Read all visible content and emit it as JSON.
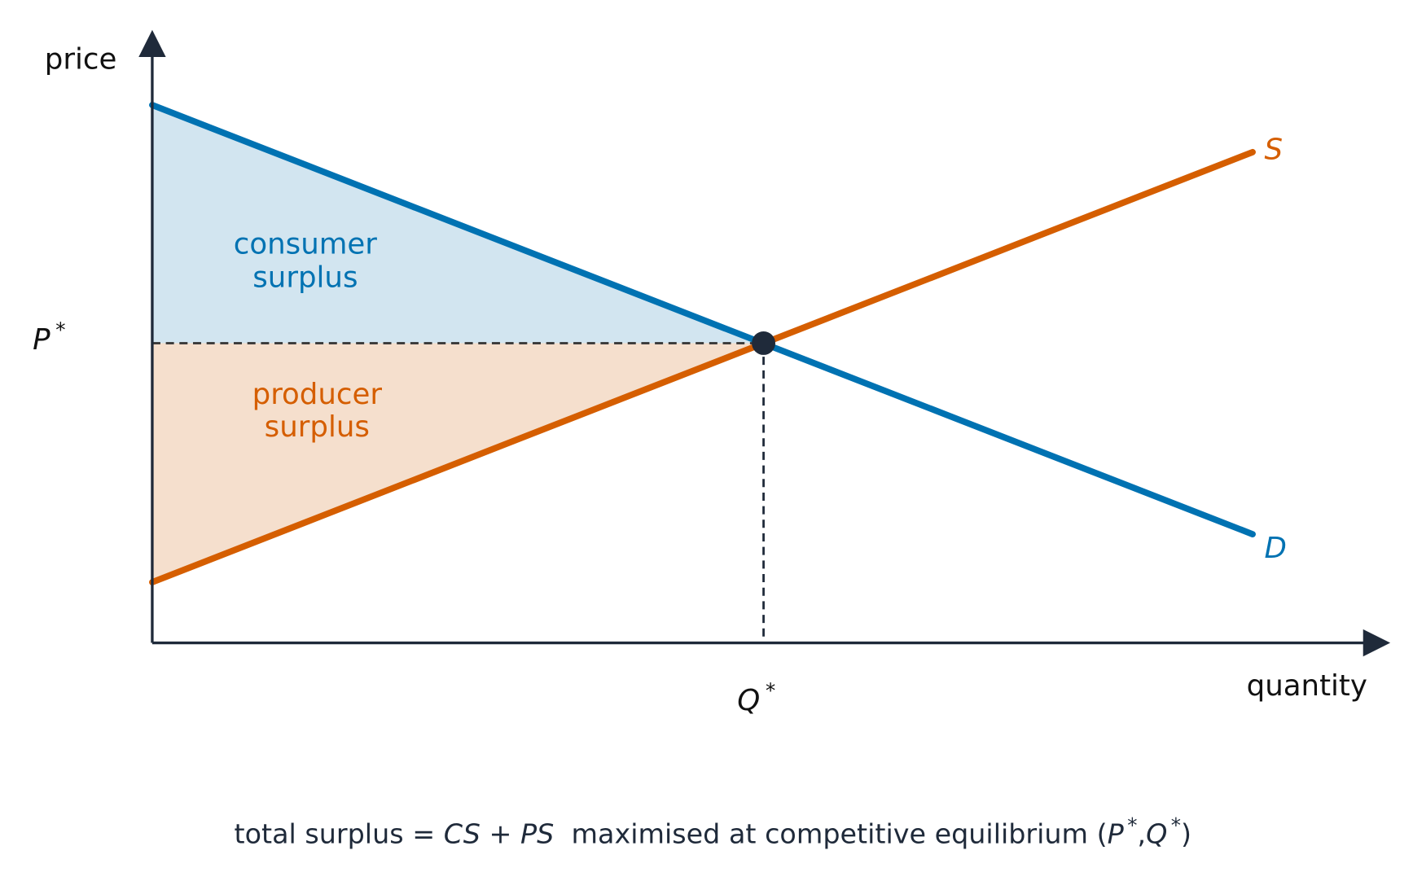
{
  "axes": {
    "y_label": "price",
    "x_label": "quantity"
  },
  "equilibrium": {
    "price": {
      "base": "P",
      "sup": "*"
    },
    "quantity": {
      "base": "Q",
      "sup": "*"
    }
  },
  "curves": {
    "supply": "S",
    "demand": "D"
  },
  "areas": {
    "consumer_surplus": [
      "consumer",
      "surplus"
    ],
    "producer_surplus": [
      "producer",
      "surplus"
    ]
  },
  "caption": [
    "total surplus ",
    "= ",
    "CS",
    " + ",
    "PS",
    "  maximised at competitive equilibrium (",
    "P",
    "*",
    ",",
    "Q",
    "*",
    ")"
  ]
}
